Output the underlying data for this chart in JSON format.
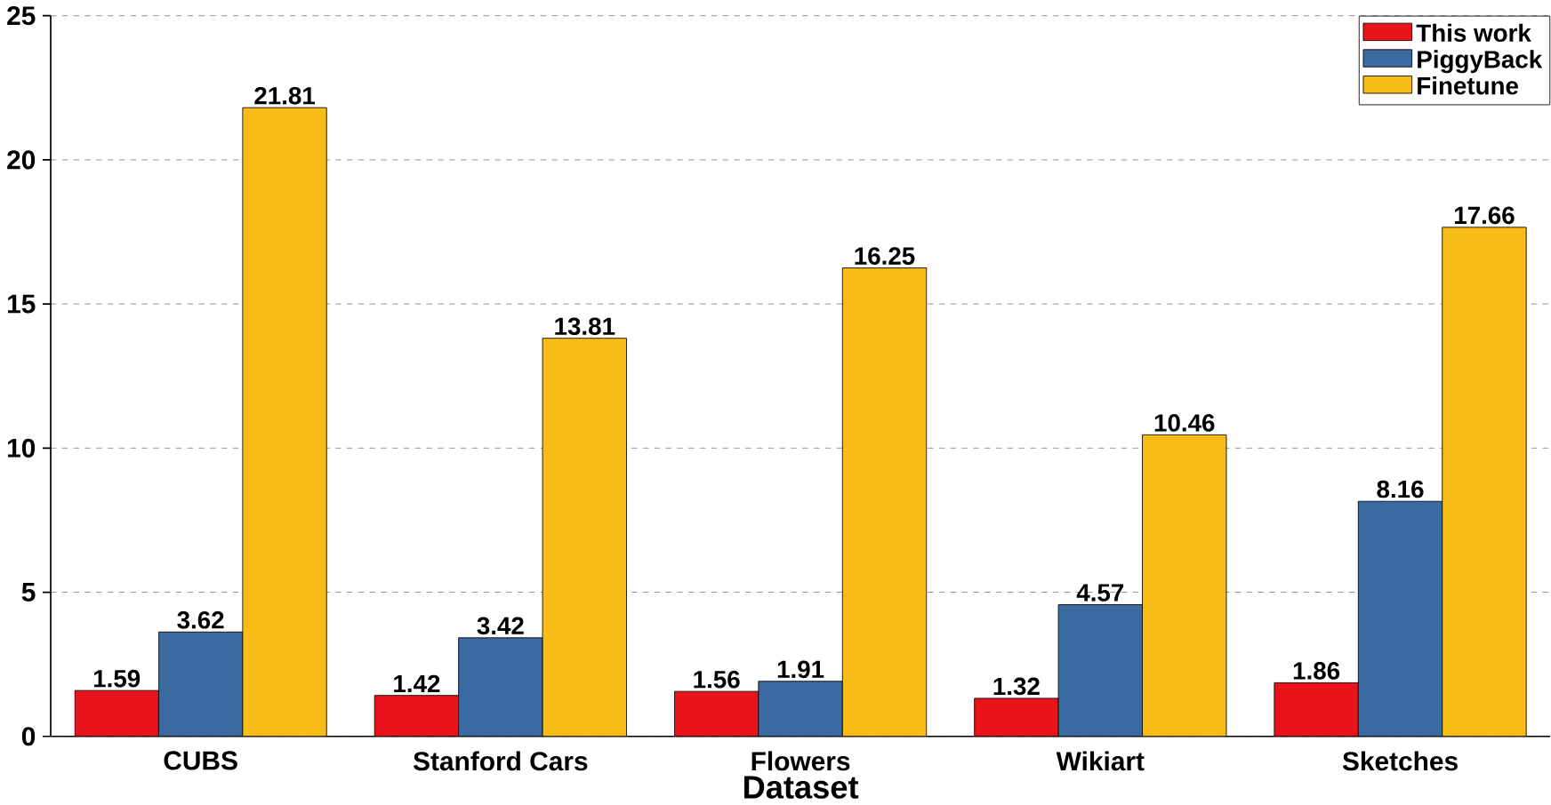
{
  "chart_data": {
    "type": "bar",
    "xlabel": "Dataset",
    "categories": [
      "CUBS",
      "Stanford Cars",
      "Flowers",
      "Wikiart",
      "Sketches"
    ],
    "series": [
      {
        "name": "This work",
        "color": "#e8131b",
        "values": [
          1.59,
          1.42,
          1.56,
          1.32,
          1.86
        ]
      },
      {
        "name": "PiggyBack",
        "color": "#3b6aa0",
        "values": [
          3.62,
          3.42,
          1.91,
          4.57,
          8.16
        ]
      },
      {
        "name": "Finetune",
        "color": "#f7bd16",
        "values": [
          21.81,
          13.81,
          16.25,
          10.46,
          17.66
        ]
      }
    ],
    "ylim": [
      0,
      25
    ],
    "yticks": [
      0,
      5,
      10,
      15,
      20,
      25
    ],
    "grid": "y",
    "legend": "top right",
    "data_labels": true
  }
}
